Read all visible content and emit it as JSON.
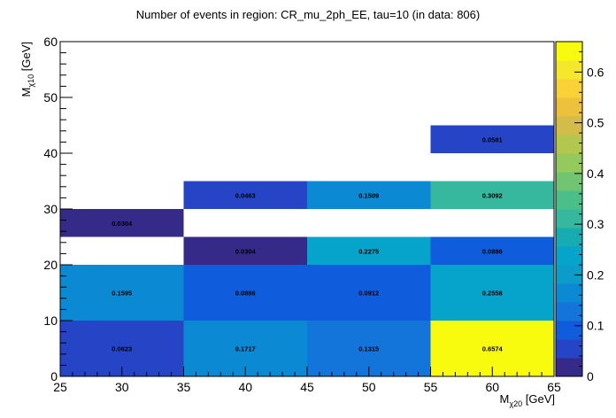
{
  "chart_data": {
    "type": "heatmap",
    "title": "Number of events in region: CR_mu_2ph_EE, tau=10 (in data: 806)",
    "xlabel": "M_{χ20} [GeV]",
    "xlabel_main": "M",
    "xlabel_sub": "χ20",
    "xlabel_unit": " [GeV]",
    "ylabel_main": "M",
    "ylabel_sub": "χ10",
    "ylabel_unit": " [GeV]",
    "xlim": [
      25,
      65
    ],
    "ylim": [
      0,
      60
    ],
    "zlim": [
      0,
      0.66
    ],
    "x_ticks": [
      25,
      30,
      35,
      40,
      45,
      50,
      55,
      60,
      65
    ],
    "y_ticks": [
      0,
      10,
      20,
      30,
      40,
      50,
      60
    ],
    "z_ticks": [
      0,
      0.1,
      0.2,
      0.3,
      0.4,
      0.5,
      0.6
    ],
    "cells": [
      {
        "x": [
          25,
          35
        ],
        "y": [
          0,
          10
        ],
        "value": 0.0623,
        "label": "0.0623"
      },
      {
        "x": [
          35,
          45
        ],
        "y": [
          0,
          10
        ],
        "value": 0.1717,
        "label": "0.1717"
      },
      {
        "x": [
          45,
          55
        ],
        "y": [
          0,
          10
        ],
        "value": 0.1315,
        "label": "0.1315"
      },
      {
        "x": [
          55,
          65
        ],
        "y": [
          0,
          10
        ],
        "value": 0.6574,
        "label": "0.6574"
      },
      {
        "x": [
          25,
          35
        ],
        "y": [
          10,
          20
        ],
        "value": 0.1595,
        "label": "0.1595"
      },
      {
        "x": [
          35,
          45
        ],
        "y": [
          10,
          20
        ],
        "value": 0.0886,
        "label": "0.0886"
      },
      {
        "x": [
          45,
          55
        ],
        "y": [
          10,
          20
        ],
        "value": 0.0912,
        "label": "0.0912"
      },
      {
        "x": [
          55,
          65
        ],
        "y": [
          10,
          20
        ],
        "value": 0.2558,
        "label": "0.2558"
      },
      {
        "x": [
          35,
          45
        ],
        "y": [
          20,
          25
        ],
        "value": 0.0304,
        "label": "0.0304"
      },
      {
        "x": [
          45,
          55
        ],
        "y": [
          20,
          25
        ],
        "value": 0.2275,
        "label": "0.2275"
      },
      {
        "x": [
          55,
          65
        ],
        "y": [
          20,
          25
        ],
        "value": 0.0886,
        "label": "0.0886"
      },
      {
        "x": [
          25,
          35
        ],
        "y": [
          25,
          30
        ],
        "value": 0.0304,
        "label": "0.0304"
      },
      {
        "x": [
          35,
          45
        ],
        "y": [
          30,
          35
        ],
        "value": 0.0463,
        "label": "0.0463"
      },
      {
        "x": [
          45,
          55
        ],
        "y": [
          30,
          35
        ],
        "value": 0.1509,
        "label": "0.1509"
      },
      {
        "x": [
          55,
          65
        ],
        "y": [
          30,
          35
        ],
        "value": 0.3092,
        "label": "0.3092"
      },
      {
        "x": [
          55,
          65
        ],
        "y": [
          40,
          45
        ],
        "value": 0.0581,
        "label": "0.0581"
      }
    ],
    "colormap": [
      "#352a87",
      "#2545c6",
      "#0f5cdd",
      "#1374d9",
      "#0b89d2",
      "#0d9bc9",
      "#06a4ca",
      "#16acb2",
      "#36b89e",
      "#4cbf89",
      "#71c572",
      "#94c95e",
      "#b3c74f",
      "#d3bc4a",
      "#eec13c",
      "#fad136",
      "#f4e72c",
      "#f9fb0e"
    ]
  }
}
